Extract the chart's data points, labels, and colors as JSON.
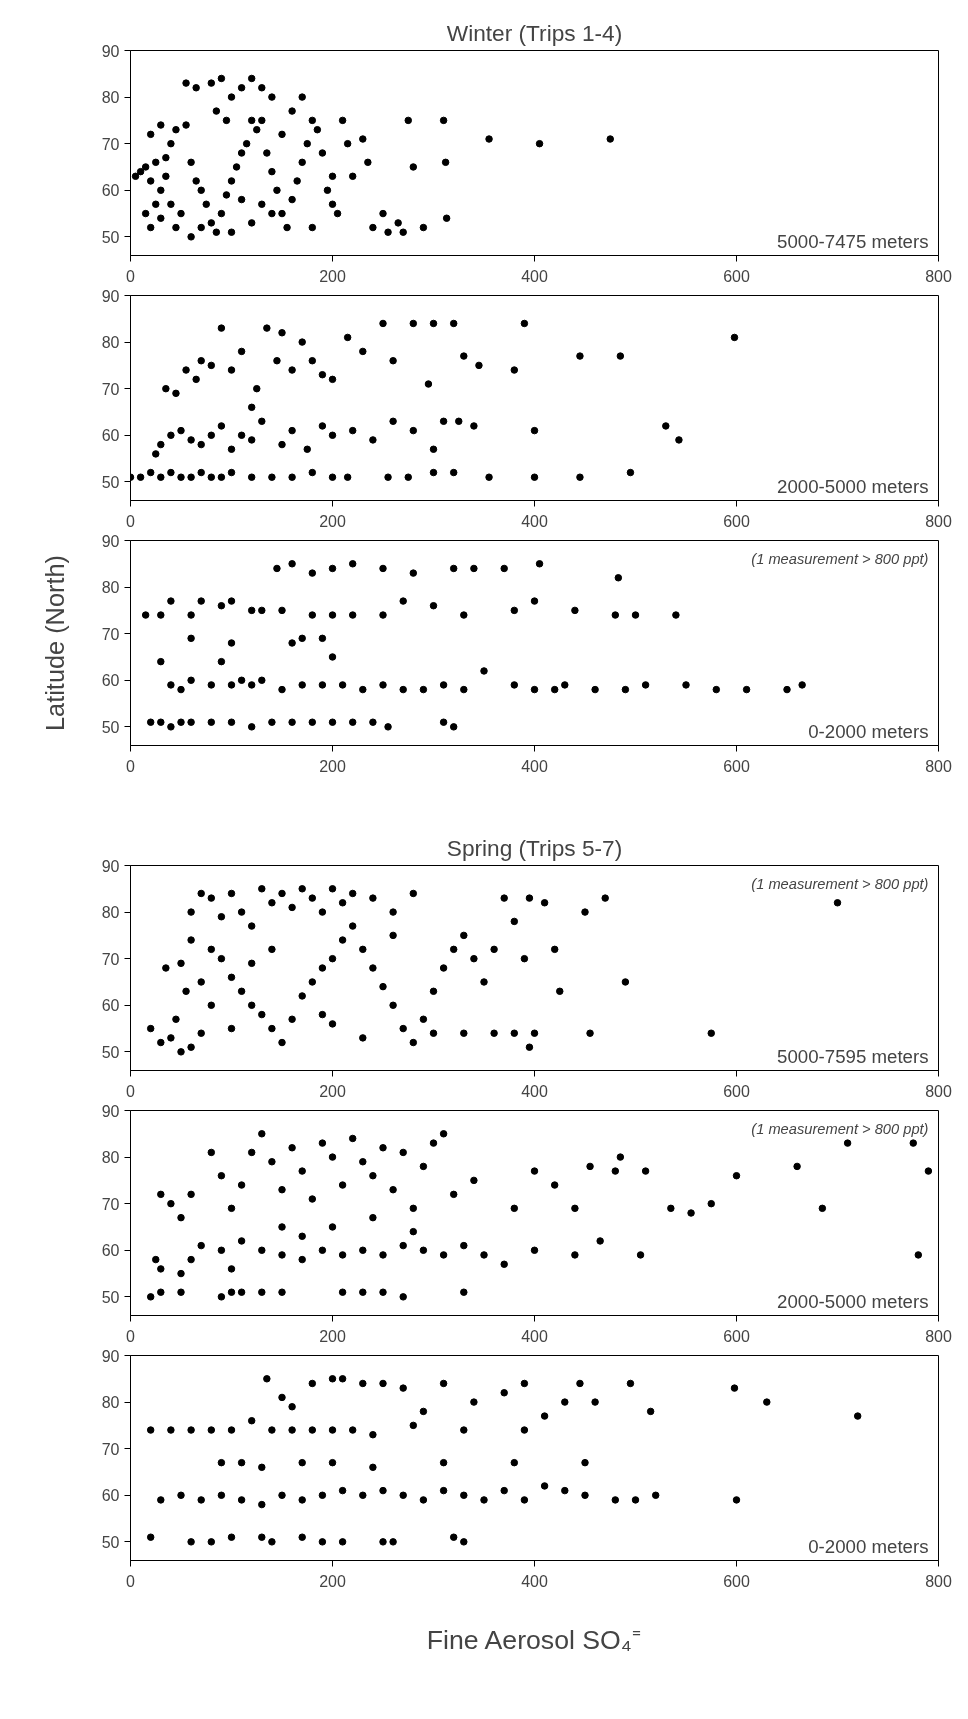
{
  "chart_data": [
    {
      "type": "scatter",
      "title": "Winter (Trips 1-4)",
      "marker": "circle",
      "color": "#000000",
      "xlim": [
        0,
        800
      ],
      "xticks": [
        0,
        200,
        400,
        600,
        800
      ],
      "ylim": [
        46,
        90
      ],
      "yticks": [
        50,
        60,
        70,
        80,
        90
      ],
      "grid": false,
      "annotations": [
        "5000-7475 meters"
      ],
      "x": [
        5,
        10,
        15,
        20,
        25,
        30,
        35,
        15,
        20,
        30,
        40,
        45,
        50,
        25,
        35,
        40,
        45,
        30,
        20,
        55,
        60,
        65,
        70,
        75,
        80,
        85,
        90,
        95,
        100,
        105,
        110,
        115,
        120,
        125,
        55,
        65,
        80,
        90,
        100,
        110,
        120,
        130,
        140,
        85,
        95,
        130,
        135,
        140,
        145,
        150,
        155,
        160,
        165,
        170,
        175,
        180,
        185,
        190,
        195,
        200,
        205,
        210,
        215,
        220,
        230,
        235,
        240,
        250,
        255,
        265,
        270,
        275,
        280,
        290,
        310,
        312,
        313,
        355,
        405,
        475,
        120,
        130,
        60,
        70,
        100,
        150,
        160,
        170,
        200,
        180,
        110,
        140
      ],
      "values": [
        63,
        64,
        65,
        62,
        66,
        60,
        63,
        55,
        52,
        54,
        57,
        52,
        55,
        57,
        67,
        70,
        73,
        74,
        72,
        74,
        66,
        62,
        60,
        57,
        53,
        51,
        55,
        59,
        62,
        65,
        68,
        70,
        75,
        73,
        83,
        82,
        83,
        84,
        80,
        82,
        84,
        82,
        80,
        77,
        75,
        75,
        68,
        64,
        60,
        55,
        52,
        58,
        62,
        66,
        70,
        75,
        73,
        68,
        60,
        57,
        55,
        75,
        70,
        63,
        71,
        66,
        52,
        55,
        51,
        53,
        51,
        75,
        65,
        52,
        75,
        66,
        54,
        71,
        70,
        71,
        53,
        57,
        50,
        52,
        51,
        72,
        77,
        80,
        63,
        52,
        58,
        55
      ]
    },
    {
      "type": "scatter",
      "marker": "circle",
      "color": "#000000",
      "xlim": [
        0,
        800
      ],
      "xticks": [
        0,
        200,
        400,
        600,
        800
      ],
      "ylim": [
        46,
        90
      ],
      "yticks": [
        50,
        60,
        70,
        80,
        90
      ],
      "grid": false,
      "annotations": [
        "2000-5000 meters"
      ],
      "x": [
        0,
        10,
        20,
        30,
        40,
        50,
        60,
        70,
        80,
        90,
        100,
        120,
        140,
        160,
        180,
        200,
        215,
        255,
        275,
        300,
        320,
        355,
        400,
        445,
        495,
        25,
        30,
        40,
        50,
        60,
        70,
        80,
        90,
        100,
        110,
        120,
        130,
        150,
        160,
        175,
        190,
        200,
        220,
        240,
        260,
        280,
        300,
        310,
        325,
        340,
        400,
        530,
        543,
        35,
        45,
        55,
        65,
        70,
        80,
        90,
        100,
        110,
        125,
        135,
        145,
        160,
        170,
        180,
        190,
        200,
        215,
        230,
        250,
        260,
        280,
        295,
        300,
        320,
        330,
        345,
        380,
        390,
        445,
        485,
        598,
        120,
        150
      ],
      "values": [
        51,
        51,
        52,
        51,
        52,
        51,
        51,
        52,
        51,
        51,
        52,
        51,
        51,
        51,
        52,
        51,
        51,
        51,
        51,
        52,
        52,
        51,
        51,
        51,
        52,
        56,
        58,
        60,
        61,
        59,
        58,
        60,
        62,
        57,
        60,
        59,
        63,
        58,
        61,
        57,
        62,
        60,
        61,
        59,
        63,
        61,
        57,
        63,
        63,
        62,
        61,
        62,
        59,
        70,
        69,
        74,
        72,
        76,
        75,
        83,
        74,
        78,
        70,
        83,
        76,
        74,
        80,
        76,
        73,
        72,
        81,
        78,
        84,
        76,
        84,
        71,
        84,
        84,
        77,
        75,
        74,
        84,
        77,
        77,
        81,
        66,
        82
      ]
    },
    {
      "type": "scatter",
      "ylabel": "Latitude (North)",
      "marker": "circle",
      "color": "#000000",
      "xlim": [
        0,
        800
      ],
      "xticks": [
        0,
        200,
        400,
        600,
        800
      ],
      "ylim": [
        46,
        90
      ],
      "yticks": [
        50,
        60,
        70,
        80,
        90
      ],
      "grid": false,
      "annotations": [
        "0-2000 meters",
        "(1 measurement > 800 ppt)"
      ],
      "x": [
        20,
        30,
        40,
        50,
        60,
        80,
        100,
        120,
        140,
        160,
        180,
        200,
        220,
        240,
        255,
        310,
        320,
        40,
        50,
        60,
        80,
        100,
        110,
        120,
        130,
        150,
        170,
        190,
        210,
        230,
        250,
        270,
        290,
        310,
        330,
        350,
        380,
        400,
        420,
        430,
        460,
        490,
        510,
        550,
        580,
        610,
        650,
        665,
        30,
        60,
        90,
        100,
        130,
        160,
        170,
        190,
        200,
        15,
        30,
        40,
        60,
        70,
        90,
        100,
        120,
        150,
        180,
        200,
        220,
        250,
        270,
        300,
        330,
        380,
        400,
        440,
        480,
        500,
        540,
        145,
        160,
        180,
        200,
        220,
        250,
        280,
        320,
        340,
        370,
        405,
        483
      ],
      "values": [
        51,
        51,
        50,
        51,
        51,
        51,
        51,
        50,
        51,
        51,
        51,
        51,
        51,
        51,
        50,
        51,
        50,
        59,
        58,
        60,
        59,
        59,
        60,
        59,
        60,
        58,
        59,
        59,
        59,
        58,
        59,
        58,
        58,
        59,
        58,
        62,
        59,
        58,
        58,
        59,
        58,
        58,
        59,
        59,
        58,
        58,
        58,
        59,
        64,
        69,
        64,
        68,
        75,
        68,
        69,
        69,
        65,
        74,
        74,
        77,
        74,
        77,
        76,
        77,
        75,
        75,
        74,
        74,
        74,
        74,
        77,
        76,
        74,
        75,
        77,
        75,
        74,
        74,
        74,
        84,
        85,
        83,
        84,
        85,
        84,
        83,
        84,
        84,
        84,
        85,
        82
      ]
    },
    {
      "type": "scatter",
      "title": "Spring (Trips 5-7)",
      "marker": "circle",
      "color": "#000000",
      "xlim": [
        0,
        800
      ],
      "xticks": [
        0,
        200,
        400,
        600,
        800
      ],
      "ylim": [
        46,
        90
      ],
      "yticks": [
        50,
        60,
        70,
        80,
        90
      ],
      "grid": false,
      "annotations": [
        "5000-7595 meters",
        "(1 measurement > 800 ppt)"
      ],
      "x": [
        20,
        30,
        40,
        50,
        60,
        70,
        45,
        55,
        35,
        50,
        60,
        70,
        80,
        90,
        100,
        110,
        120,
        130,
        140,
        150,
        160,
        170,
        180,
        190,
        200,
        210,
        220,
        240,
        260,
        280,
        60,
        80,
        90,
        100,
        110,
        120,
        130,
        140,
        150,
        160,
        170,
        180,
        190,
        200,
        210,
        220,
        230,
        240,
        250,
        260,
        270,
        280,
        290,
        300,
        310,
        320,
        330,
        340,
        350,
        360,
        370,
        380,
        390,
        395,
        400,
        410,
        420,
        425,
        450,
        470,
        455,
        490,
        575,
        700,
        100,
        80,
        70,
        120,
        140,
        200,
        230,
        330,
        360,
        380,
        395,
        300,
        260,
        190
      ],
      "values": [
        55,
        52,
        53,
        50,
        51,
        54,
        57,
        63,
        68,
        69,
        80,
        84,
        83,
        79,
        84,
        80,
        77,
        85,
        82,
        84,
        81,
        85,
        83,
        80,
        85,
        82,
        84,
        83,
        80,
        84,
        74,
        72,
        70,
        66,
        63,
        60,
        58,
        55,
        52,
        57,
        62,
        65,
        68,
        70,
        74,
        77,
        72,
        68,
        64,
        60,
        55,
        52,
        57,
        63,
        68,
        72,
        75,
        70,
        65,
        72,
        83,
        78,
        70,
        83,
        54,
        82,
        72,
        63,
        80,
        83,
        54,
        65,
        54,
        82,
        55,
        60,
        65,
        69,
        72,
        56,
        53,
        54,
        54,
        54,
        51,
        54,
        75,
        58
      ]
    },
    {
      "type": "scatter",
      "marker": "circle",
      "color": "#000000",
      "xlim": [
        0,
        800
      ],
      "xticks": [
        0,
        200,
        400,
        600,
        800
      ],
      "ylim": [
        46,
        90
      ],
      "yticks": [
        50,
        60,
        70,
        80,
        90
      ],
      "grid": false,
      "annotations": [
        "2000-5000 meters",
        "(1 measurement > 800 ppt)"
      ],
      "x": [
        20,
        30,
        50,
        90,
        100,
        110,
        130,
        150,
        210,
        230,
        250,
        270,
        330,
        25,
        30,
        50,
        60,
        70,
        90,
        100,
        110,
        130,
        150,
        170,
        190,
        210,
        230,
        250,
        270,
        290,
        310,
        330,
        350,
        370,
        400,
        440,
        465,
        505,
        780,
        30,
        40,
        50,
        60,
        80,
        90,
        100,
        110,
        120,
        130,
        140,
        150,
        160,
        170,
        180,
        190,
        200,
        210,
        220,
        230,
        240,
        250,
        260,
        270,
        280,
        290,
        300,
        310,
        320,
        340,
        380,
        400,
        420,
        440,
        455,
        480,
        485,
        510,
        535,
        555,
        575,
        600,
        660,
        685,
        710,
        775,
        790,
        150,
        170,
        200,
        240,
        280
      ],
      "values": [
        50,
        51,
        51,
        50,
        51,
        51,
        51,
        51,
        51,
        51,
        51,
        50,
        51,
        58,
        56,
        55,
        58,
        61,
        60,
        56,
        62,
        60,
        59,
        58,
        60,
        59,
        60,
        59,
        61,
        60,
        59,
        61,
        59,
        57,
        60,
        59,
        62,
        59,
        59,
        72,
        70,
        67,
        72,
        81,
        76,
        69,
        74,
        81,
        85,
        79,
        73,
        82,
        77,
        71,
        83,
        80,
        74,
        84,
        79,
        76,
        82,
        73,
        81,
        69,
        78,
        83,
        85,
        72,
        75,
        69,
        77,
        74,
        69,
        78,
        77,
        80,
        77,
        69,
        68,
        70,
        76,
        78,
        69,
        83,
        83,
        77,
        65,
        63,
        65,
        67,
        64
      ]
    },
    {
      "type": "scatter",
      "xlabel": "Fine Aerosol SO₄⁼",
      "marker": "circle",
      "color": "#000000",
      "xlim": [
        0,
        800
      ],
      "xticks": [
        0,
        200,
        400,
        600,
        800
      ],
      "ylim": [
        46,
        90
      ],
      "yticks": [
        50,
        60,
        70,
        80,
        90
      ],
      "grid": false,
      "annotations": [
        "0-2000 meters"
      ],
      "x": [
        20,
        60,
        80,
        100,
        130,
        140,
        170,
        190,
        210,
        250,
        260,
        320,
        330,
        30,
        50,
        70,
        90,
        110,
        130,
        150,
        170,
        190,
        210,
        230,
        250,
        270,
        290,
        310,
        330,
        350,
        370,
        390,
        410,
        430,
        450,
        480,
        500,
        520,
        600,
        20,
        40,
        60,
        80,
        100,
        120,
        140,
        160,
        180,
        200,
        220,
        240,
        280,
        330,
        390,
        90,
        110,
        130,
        170,
        200,
        240,
        310,
        380,
        450,
        135,
        150,
        160,
        180,
        200,
        210,
        230,
        250,
        270,
        290,
        310,
        340,
        370,
        390,
        410,
        430,
        445,
        460,
        495,
        515,
        598,
        630,
        720
      ],
      "values": [
        51,
        50,
        50,
        51,
        51,
        50,
        51,
        50,
        50,
        50,
        50,
        51,
        50,
        59,
        60,
        59,
        60,
        59,
        58,
        60,
        59,
        60,
        61,
        60,
        61,
        60,
        59,
        61,
        60,
        59,
        61,
        59,
        62,
        61,
        60,
        59,
        59,
        60,
        59,
        74,
        74,
        74,
        74,
        74,
        76,
        74,
        74,
        74,
        74,
        74,
        73,
        75,
        74,
        74,
        67,
        67,
        66,
        67,
        67,
        66,
        67,
        67,
        67,
        85,
        81,
        79,
        84,
        85,
        85,
        84,
        84,
        83,
        78,
        84,
        80,
        82,
        84,
        77,
        80,
        84,
        80,
        84,
        78,
        83,
        80,
        77
      ]
    }
  ]
}
